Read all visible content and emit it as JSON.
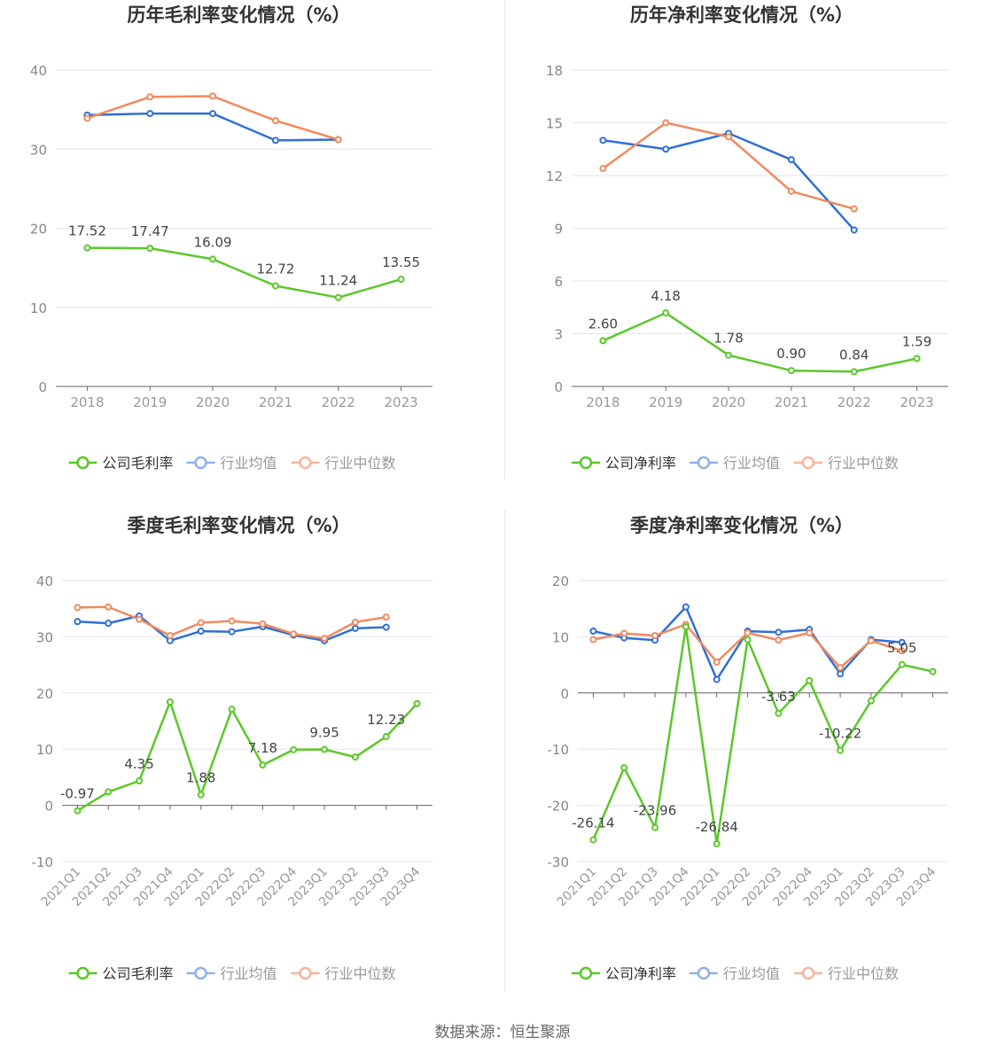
{
  "colors": {
    "company": "#5ac829",
    "avg": "#2f6fd8",
    "median": "#f08a5d",
    "grid": "#e3e6ef",
    "axis": "#666666"
  },
  "legend": {
    "avg": "行业均值",
    "median": "行业中位数"
  },
  "source": "数据来源：恒生聚源",
  "chart_data": [
    {
      "type": "line",
      "title": "历年毛利率变化情况（%）",
      "categories": [
        "2018",
        "2019",
        "2020",
        "2021",
        "2022",
        "2023"
      ],
      "ylim": [
        0,
        40
      ],
      "yticks": [
        0,
        10,
        20,
        30,
        40
      ],
      "legend_company": "公司毛利率",
      "series": [
        {
          "name": "公司毛利率",
          "key": "company",
          "values": [
            17.52,
            17.47,
            16.09,
            12.72,
            11.24,
            13.55
          ]
        },
        {
          "name": "行业均值",
          "key": "avg",
          "values": [
            34.3,
            34.5,
            34.5,
            31.1,
            31.2,
            null
          ]
        },
        {
          "name": "行业中位数",
          "key": "median",
          "values": [
            33.9,
            36.6,
            36.7,
            33.6,
            31.2,
            null
          ]
        }
      ],
      "labels": [
        "17.52",
        "17.47",
        "16.09",
        "12.72",
        "11.24",
        "13.55"
      ]
    },
    {
      "type": "line",
      "title": "历年净利率变化情况（%）",
      "categories": [
        "2018",
        "2019",
        "2020",
        "2021",
        "2022",
        "2023"
      ],
      "ylim": [
        0,
        18
      ],
      "yticks": [
        0,
        3,
        6,
        9,
        12,
        15,
        18
      ],
      "legend_company": "公司净利率",
      "series": [
        {
          "name": "公司净利率",
          "key": "company",
          "values": [
            2.6,
            4.18,
            1.78,
            0.9,
            0.84,
            1.59
          ]
        },
        {
          "name": "行业均值",
          "key": "avg",
          "values": [
            14.0,
            13.5,
            14.4,
            12.9,
            8.9,
            null
          ]
        },
        {
          "name": "行业中位数",
          "key": "median",
          "values": [
            12.4,
            15.0,
            14.2,
            11.1,
            10.1,
            null
          ]
        }
      ],
      "labels": [
        "2.60",
        "4.18",
        "1.78",
        "0.90",
        "0.84",
        "1.59"
      ]
    },
    {
      "type": "line",
      "title": "季度毛利率变化情况（%）",
      "categories": [
        "2021Q1",
        "2021Q2",
        "2021Q3",
        "2021Q4",
        "2022Q1",
        "2022Q2",
        "2022Q3",
        "2022Q4",
        "2023Q1",
        "2023Q2",
        "2023Q3",
        "2023Q4"
      ],
      "ylim": [
        -10,
        40
      ],
      "yticks": [
        -10,
        0,
        10,
        20,
        30,
        40
      ],
      "legend_company": "公司毛利率",
      "series": [
        {
          "name": "公司毛利率",
          "key": "company",
          "values": [
            -0.97,
            2.4,
            4.35,
            18.4,
            1.88,
            17.1,
            7.18,
            9.9,
            9.95,
            8.6,
            12.23,
            18.1
          ]
        },
        {
          "name": "行业均值",
          "key": "avg",
          "values": [
            32.7,
            32.4,
            33.7,
            29.3,
            31.0,
            30.9,
            31.8,
            30.3,
            29.3,
            31.5,
            31.7,
            null
          ]
        },
        {
          "name": "行业中位数",
          "key": "median",
          "values": [
            35.2,
            35.3,
            33.1,
            30.2,
            32.5,
            32.8,
            32.3,
            30.5,
            29.7,
            32.6,
            33.5,
            null
          ]
        }
      ],
      "labels": [
        "-0.97",
        "",
        "4.35",
        "",
        "1.88",
        "",
        "7.18",
        "",
        "9.95",
        "",
        "12.23",
        ""
      ]
    },
    {
      "type": "line",
      "title": "季度净利率变化情况（%）",
      "categories": [
        "2021Q1",
        "2021Q2",
        "2021Q3",
        "2021Q4",
        "2022Q1",
        "2022Q2",
        "2022Q3",
        "2022Q4",
        "2023Q1",
        "2023Q2",
        "2023Q3",
        "2023Q4"
      ],
      "ylim": [
        -30,
        20
      ],
      "yticks": [
        -30,
        -20,
        -10,
        0,
        10,
        20
      ],
      "legend_company": "公司净利率",
      "series": [
        {
          "name": "公司净利率",
          "key": "company",
          "values": [
            -26.14,
            -13.3,
            -23.96,
            11.8,
            -26.84,
            9.5,
            -3.63,
            2.2,
            -10.22,
            -1.4,
            5.05,
            3.8
          ]
        },
        {
          "name": "行业均值",
          "key": "avg",
          "values": [
            11.0,
            9.8,
            9.4,
            15.3,
            2.4,
            11.0,
            10.8,
            11.3,
            3.4,
            9.5,
            9.0,
            null
          ]
        },
        {
          "name": "行业中位数",
          "key": "median",
          "values": [
            9.5,
            10.6,
            10.2,
            12.2,
            5.5,
            10.7,
            9.4,
            10.7,
            4.5,
            9.3,
            7.5,
            null
          ]
        }
      ],
      "labels": [
        "-26.14",
        "",
        "-23.96",
        "",
        "-26.84",
        "",
        "-3.63",
        "",
        "-10.22",
        "",
        "5.05",
        ""
      ]
    }
  ]
}
